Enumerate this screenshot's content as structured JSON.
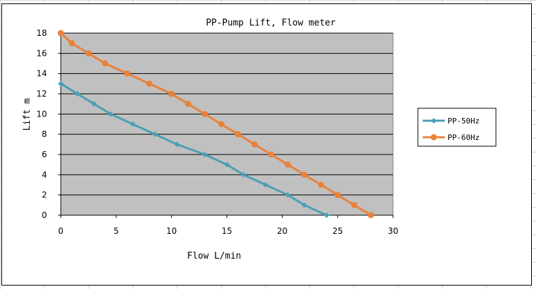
{
  "chart_data": {
    "type": "line",
    "title": "PP-Pump Lift, Flow meter",
    "xlabel": "Flow  L/min",
    "ylabel": "Lift m",
    "xlim": [
      0,
      30
    ],
    "ylim": [
      0,
      18
    ],
    "xticks": [
      "0",
      "5",
      "10",
      "15",
      "20",
      "25",
      "30"
    ],
    "yticks": [
      "0",
      "2",
      "4",
      "6",
      "8",
      "10",
      "12",
      "14",
      "16",
      "18"
    ],
    "grid": true,
    "legend_position": "right",
    "background": "#c0c0c0",
    "series": [
      {
        "name": "PP-50Hz",
        "color": "#4a9fb5",
        "marker": "diamond",
        "x": [
          0,
          1.5,
          3,
          4.5,
          6.5,
          8.5,
          10.5,
          13,
          15,
          16.5,
          18.5,
          20.5,
          22,
          24
        ],
        "y": [
          13,
          12,
          11,
          10,
          9,
          8,
          7,
          6,
          5,
          4,
          3,
          2,
          1,
          0
        ]
      },
      {
        "name": "PP-60Hz",
        "color": "#e8823a",
        "marker": "circle",
        "x": [
          0,
          1,
          2.5,
          4,
          6,
          8,
          10,
          11.5,
          13,
          14.5,
          16,
          17.5,
          19,
          20.5,
          22,
          23.5,
          25,
          26.5,
          28
        ],
        "y": [
          18,
          17,
          16,
          15,
          14,
          13,
          12,
          11,
          10,
          9,
          8,
          7,
          6,
          5,
          4,
          3,
          2,
          1,
          0
        ]
      }
    ]
  }
}
